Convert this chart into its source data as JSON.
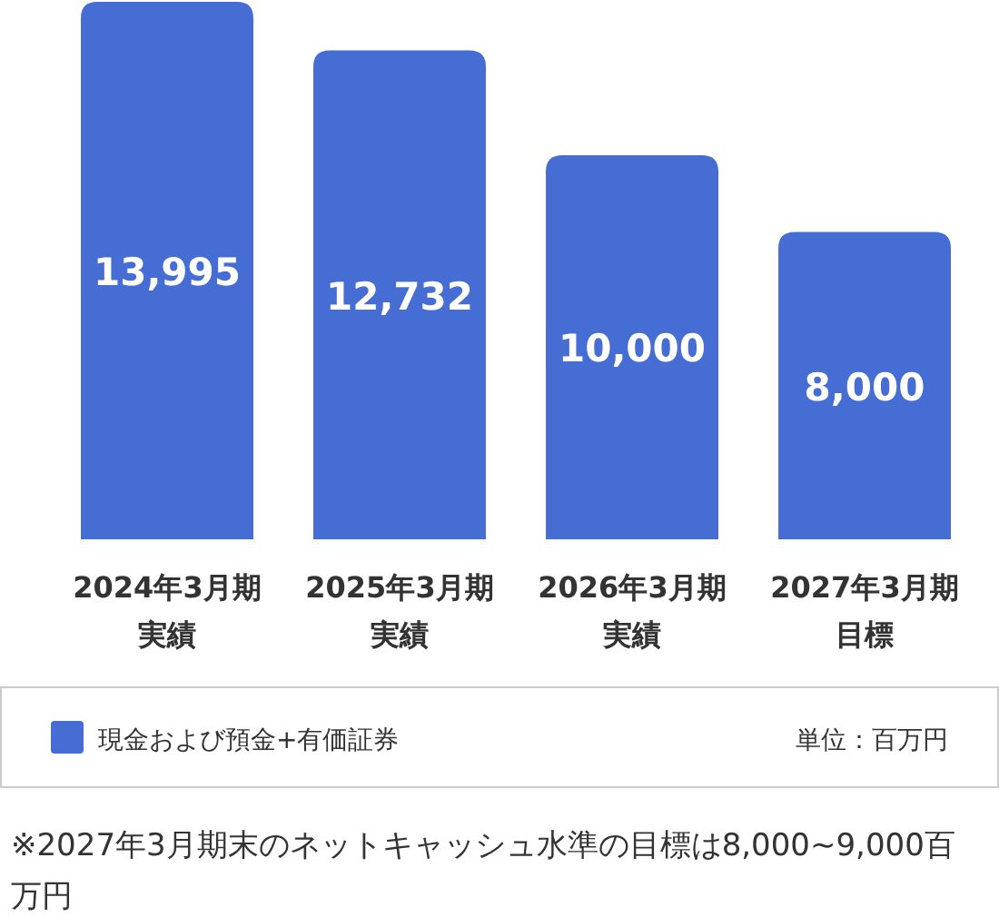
{
  "chart_data": {
    "type": "bar",
    "categories": [
      "2024年3月期実績",
      "2025年3月期実績",
      "2026年3月期実績",
      "2027年3月期目標"
    ],
    "series": [
      {
        "name": "現金および預金+有価証券",
        "color": "#456dd3",
        "values": [
          13995,
          12732,
          10000,
          8000
        ],
        "value_labels": [
          "13,995",
          "12,732",
          "10,000",
          "8,000"
        ]
      }
    ],
    "legend": "bottom",
    "annotations": [
      "単位：百万円",
      "※2027年3月期末のネットキャッシュ水準の目標は8,000~9,000百万円"
    ]
  }
}
